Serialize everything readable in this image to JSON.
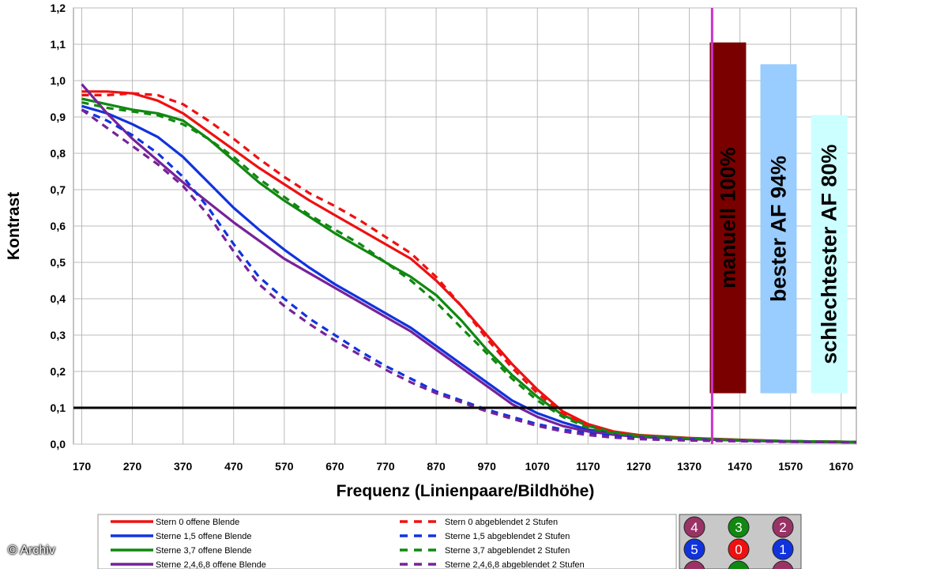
{
  "chart_data": {
    "type": "line",
    "xlabel": "Frequenz (Linienpaare/Bildhöhe)",
    "ylabel": "Kontrast",
    "xlim": [
      170,
      1700
    ],
    "ylim": [
      0,
      1.2
    ],
    "x_ticks": [
      "170",
      "270",
      "370",
      "470",
      "570",
      "670",
      "770",
      "870",
      "970",
      "1070",
      "1170",
      "1270",
      "1370",
      "1470",
      "1570",
      "1670"
    ],
    "y_ticks": [
      "0,0",
      "0,1",
      "0,2",
      "0,3",
      "0,4",
      "0,5",
      "0,6",
      "0,7",
      "0,8",
      "0,9",
      "1,0",
      "1,1",
      "1,2"
    ],
    "grid": true,
    "reference_line": {
      "y": 0.1,
      "color": "#000000"
    },
    "vertical_marker": {
      "x": 1415,
      "color": "#cc33cc"
    },
    "series": [
      {
        "name": "Stern 0 offene Blende",
        "color": "#ee1111",
        "dash": false,
        "x": [
          170,
          220,
          270,
          320,
          370,
          420,
          470,
          520,
          570,
          620,
          670,
          720,
          770,
          820,
          870,
          920,
          970,
          1020,
          1070,
          1120,
          1170,
          1220,
          1270,
          1370,
          1470,
          1570,
          1700
        ],
        "y": [
          0.97,
          0.97,
          0.965,
          0.945,
          0.91,
          0.86,
          0.81,
          0.76,
          0.715,
          0.67,
          0.63,
          0.59,
          0.55,
          0.51,
          0.45,
          0.38,
          0.3,
          0.22,
          0.15,
          0.09,
          0.055,
          0.035,
          0.025,
          0.017,
          0.012,
          0.008,
          0.006
        ]
      },
      {
        "name": "Sterne 1,5 offene Blende",
        "color": "#1133dd",
        "dash": false,
        "x": [
          170,
          220,
          270,
          320,
          370,
          420,
          470,
          520,
          570,
          620,
          670,
          720,
          770,
          820,
          870,
          920,
          970,
          1020,
          1070,
          1120,
          1170,
          1220,
          1270,
          1370,
          1470,
          1570,
          1700
        ],
        "y": [
          0.93,
          0.91,
          0.88,
          0.845,
          0.79,
          0.72,
          0.65,
          0.59,
          0.535,
          0.485,
          0.44,
          0.4,
          0.36,
          0.32,
          0.27,
          0.22,
          0.17,
          0.12,
          0.085,
          0.06,
          0.04,
          0.03,
          0.022,
          0.015,
          0.01,
          0.007,
          0.005
        ]
      },
      {
        "name": "Sterne 3,7 offene Blende",
        "color": "#118811",
        "dash": false,
        "x": [
          170,
          220,
          270,
          320,
          370,
          420,
          470,
          520,
          570,
          620,
          670,
          720,
          770,
          820,
          870,
          920,
          970,
          1020,
          1070,
          1120,
          1170,
          1220,
          1270,
          1370,
          1470,
          1570,
          1700
        ],
        "y": [
          0.95,
          0.935,
          0.92,
          0.91,
          0.89,
          0.84,
          0.78,
          0.72,
          0.67,
          0.625,
          0.58,
          0.54,
          0.5,
          0.46,
          0.41,
          0.34,
          0.26,
          0.19,
          0.13,
          0.08,
          0.05,
          0.033,
          0.024,
          0.016,
          0.011,
          0.008,
          0.006
        ]
      },
      {
        "name": "Sterne 2,4,6,8 offene Blende",
        "color": "#772299",
        "dash": false,
        "x": [
          170,
          220,
          270,
          320,
          370,
          420,
          470,
          520,
          570,
          620,
          670,
          720,
          770,
          820,
          870,
          920,
          970,
          1020,
          1070,
          1120,
          1170,
          1220,
          1270,
          1370,
          1470,
          1570,
          1700
        ],
        "y": [
          0.99,
          0.91,
          0.84,
          0.78,
          0.72,
          0.665,
          0.61,
          0.56,
          0.51,
          0.47,
          0.43,
          0.39,
          0.35,
          0.31,
          0.26,
          0.21,
          0.16,
          0.11,
          0.075,
          0.05,
          0.035,
          0.026,
          0.02,
          0.014,
          0.01,
          0.007,
          0.005
        ]
      },
      {
        "name": "Stern 0 abgeblendet 2 Stufen",
        "color": "#ee1111",
        "dash": true,
        "x": [
          170,
          220,
          270,
          320,
          370,
          420,
          470,
          520,
          570,
          620,
          670,
          720,
          770,
          820,
          870,
          920,
          970,
          1020,
          1070,
          1120,
          1170,
          1220,
          1270,
          1370,
          1470,
          1570,
          1700
        ],
        "y": [
          0.96,
          0.96,
          0.965,
          0.96,
          0.935,
          0.89,
          0.84,
          0.785,
          0.735,
          0.69,
          0.655,
          0.615,
          0.57,
          0.525,
          0.46,
          0.38,
          0.29,
          0.21,
          0.14,
          0.085,
          0.05,
          0.033,
          0.024,
          0.016,
          0.011,
          0.008,
          0.006
        ]
      },
      {
        "name": "Sterne 1,5 abgeblendet 2 Stufen",
        "color": "#1133dd",
        "dash": true,
        "x": [
          170,
          220,
          270,
          320,
          370,
          420,
          470,
          520,
          570,
          620,
          670,
          720,
          770,
          820,
          870,
          920,
          970,
          1020,
          1070,
          1120,
          1170,
          1220,
          1270,
          1370,
          1470,
          1570,
          1700
        ],
        "y": [
          0.92,
          0.89,
          0.85,
          0.8,
          0.735,
          0.65,
          0.55,
          0.46,
          0.4,
          0.345,
          0.3,
          0.255,
          0.215,
          0.18,
          0.145,
          0.12,
          0.095,
          0.075,
          0.055,
          0.04,
          0.03,
          0.022,
          0.017,
          0.012,
          0.009,
          0.007,
          0.005
        ]
      },
      {
        "name": "Sterne 3,7 abgeblendet 2 Stufen",
        "color": "#118811",
        "dash": true,
        "x": [
          170,
          220,
          270,
          320,
          370,
          420,
          470,
          520,
          570,
          620,
          670,
          720,
          770,
          820,
          870,
          920,
          970,
          1020,
          1070,
          1120,
          1170,
          1220,
          1270,
          1370,
          1470,
          1570,
          1700
        ],
        "y": [
          0.94,
          0.925,
          0.915,
          0.905,
          0.88,
          0.84,
          0.79,
          0.73,
          0.68,
          0.63,
          0.59,
          0.55,
          0.5,
          0.45,
          0.39,
          0.32,
          0.25,
          0.18,
          0.12,
          0.075,
          0.045,
          0.03,
          0.022,
          0.015,
          0.011,
          0.008,
          0.006
        ]
      },
      {
        "name": "Sterne 2,4,6,8 abgeblendet 2 Stufen",
        "color": "#772299",
        "dash": true,
        "x": [
          170,
          220,
          270,
          320,
          370,
          420,
          470,
          520,
          570,
          620,
          670,
          720,
          770,
          820,
          870,
          920,
          970,
          1020,
          1070,
          1120,
          1170,
          1220,
          1270,
          1370,
          1470,
          1570,
          1700
        ],
        "y": [
          0.92,
          0.87,
          0.82,
          0.77,
          0.71,
          0.63,
          0.53,
          0.44,
          0.38,
          0.33,
          0.285,
          0.245,
          0.205,
          0.17,
          0.14,
          0.115,
          0.09,
          0.07,
          0.05,
          0.035,
          0.025,
          0.018,
          0.014,
          0.01,
          0.008,
          0.006,
          0.005
        ]
      }
    ],
    "bars": [
      {
        "label": "manuell 100%",
        "value": 1.105,
        "base": 0.14,
        "color": "#7a0000",
        "x_center": 1490
      },
      {
        "label": "bester AF 94%",
        "value": 1.045,
        "base": 0.14,
        "color": "#99ccff",
        "x_center": 1590
      },
      {
        "label": "schlechtester AF 80%",
        "value": 0.905,
        "base": 0.14,
        "color": "#ccffff",
        "x_center": 1690
      }
    ],
    "legend": {
      "placement": "bottom",
      "entries": [
        "Stern 0 offene Blende",
        "Sterne 1,5 offene Blende",
        "Sterne 3,7 offene Blende",
        "Sterne 2,4,6,8 offene Blende",
        "Stern 0 abgeblendet 2 Stufen",
        "Sterne 1,5 abgeblendet 2 Stufen",
        "Sterne 3,7 abgeblendet 2 Stufen",
        "Sterne 2,4,6,8 abgeblendet 2 Stufen"
      ]
    },
    "star_key": {
      "dots": [
        {
          "label": "4",
          "color": "#993366"
        },
        {
          "label": "3",
          "color": "#118811"
        },
        {
          "label": "2",
          "color": "#993366"
        },
        {
          "label": "5",
          "color": "#1133dd"
        },
        {
          "label": "0",
          "color": "#ee1111"
        },
        {
          "label": "1",
          "color": "#1133dd"
        },
        {
          "label": "",
          "color": "#993366"
        },
        {
          "label": "",
          "color": "#118811"
        },
        {
          "label": "",
          "color": "#993366"
        }
      ]
    }
  },
  "copyright": "© Archiv"
}
